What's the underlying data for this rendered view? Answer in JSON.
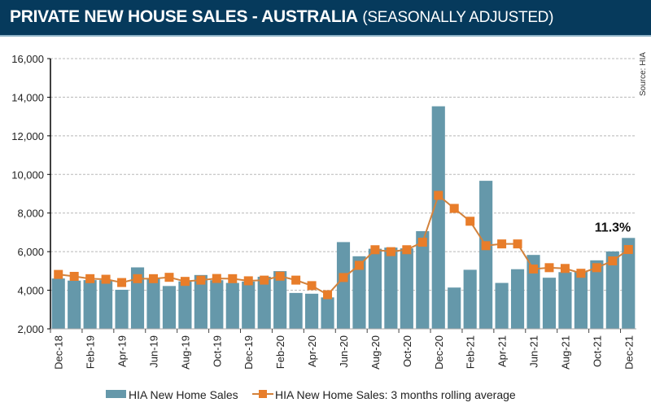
{
  "header": {
    "title_bold": "PRIVATE NEW HOUSE SALES -  AUSTRALIA",
    "title_light": "(SEASONALLY ADJUSTED)",
    "background": "#063a5c"
  },
  "chart_data": {
    "type": "bar",
    "title": "PRIVATE NEW HOUSE SALES -  AUSTRALIA (SEASONALLY ADJUSTED)",
    "xlabel": "",
    "ylabel": "",
    "ylim": [
      2000,
      16000
    ],
    "yticks": [
      2000,
      4000,
      6000,
      8000,
      10000,
      12000,
      14000,
      16000
    ],
    "ytick_labels": [
      "2,000",
      "4,000",
      "6,000",
      "8,000",
      "10,000",
      "12,000",
      "14,000",
      "16,000"
    ],
    "grid": true,
    "categories": [
      "Dec-18",
      "Jan-19",
      "Feb-19",
      "Mar-19",
      "Apr-19",
      "May-19",
      "Jun-19",
      "Jul-19",
      "Aug-19",
      "Sep-19",
      "Oct-19",
      "Nov-19",
      "Dec-19",
      "Jan-20",
      "Feb-20",
      "Mar-20",
      "Apr-20",
      "May-20",
      "Jun-20",
      "Jul-20",
      "Aug-20",
      "Sep-20",
      "Oct-20",
      "Nov-20",
      "Dec-20",
      "Jan-21",
      "Feb-21",
      "Mar-21",
      "Apr-21",
      "May-21",
      "Jun-21",
      "Jul-21",
      "Aug-21",
      "Sep-21",
      "Oct-21",
      "Nov-21",
      "Dec-21"
    ],
    "xtick_labels": [
      "Dec-18",
      "Feb-19",
      "Apr-19",
      "Jun-19",
      "Aug-19",
      "Oct-19",
      "Dec-19",
      "Feb-20",
      "Apr-20",
      "Jun-20",
      "Aug-20",
      "Oct-20",
      "Dec-20",
      "Feb-21",
      "Apr-21",
      "Jun-21",
      "Aug-21",
      "Oct-21",
      "Dec-21"
    ],
    "series": [
      {
        "name": "HIA New Home Sales",
        "type": "bar",
        "color": "#6598aa",
        "values": [
          4610,
          4500,
          4525,
          4525,
          4025,
          5185,
          4600,
          4220,
          4460,
          4790,
          4520,
          4380,
          4450,
          4700,
          4990,
          3860,
          3820,
          3630,
          6495,
          5760,
          6150,
          6210,
          6170,
          7060,
          13530,
          4140,
          5060,
          9670,
          4380,
          5090,
          5830,
          4650,
          4940,
          4980,
          5550,
          6010,
          6710
        ]
      },
      {
        "name": "HIA New Home Sales: 3 months rolling average",
        "type": "line",
        "color": "#e87d2a",
        "line_color": "#d2823c",
        "values": [
          4820,
          4720,
          4600,
          4570,
          4400,
          4600,
          4600,
          4670,
          4460,
          4525,
          4610,
          4600,
          4490,
          4525,
          4730,
          4525,
          4240,
          3770,
          4660,
          5290,
          6100,
          6000,
          6100,
          6490,
          8915,
          8240,
          7575,
          6310,
          6400,
          6400,
          5100,
          5170,
          5130,
          4880,
          5170,
          5520,
          6110
        ]
      }
    ],
    "annotations": [
      {
        "text": "11.3%",
        "category": "Dec-21"
      }
    ],
    "source": "Source: HIA",
    "legend_position": "bottom"
  }
}
